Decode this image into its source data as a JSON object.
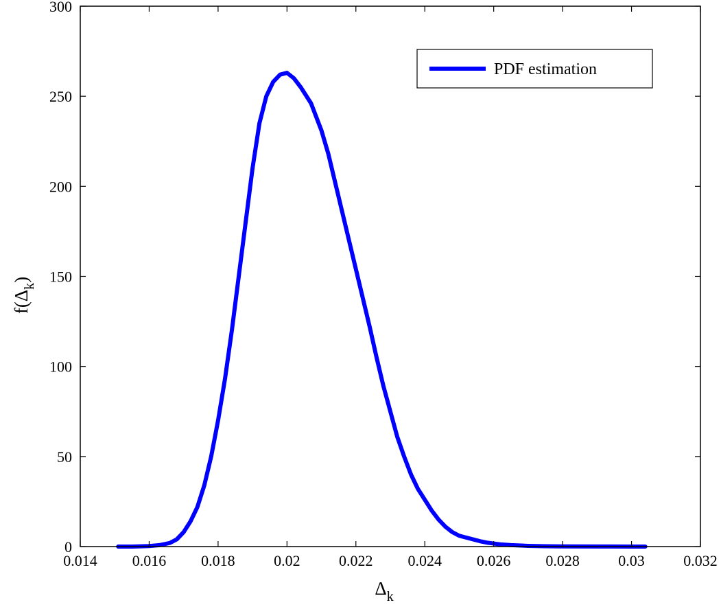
{
  "chart_data": {
    "type": "line",
    "title": "",
    "xlabel": {
      "main": "Δ",
      "sub": "k"
    },
    "ylabel": {
      "prefix": "f(Δ",
      "sub": "k",
      "suffix": ")"
    },
    "xlim": [
      0.014,
      0.032
    ],
    "ylim": [
      0,
      300
    ],
    "x_ticks": [
      0.014,
      0.016,
      0.018,
      0.02,
      0.022,
      0.024,
      0.026,
      0.028,
      0.03,
      0.032
    ],
    "x_tick_labels": [
      "0.014",
      "0.016",
      "0.018",
      "0.02",
      "0.022",
      "0.024",
      "0.026",
      "0.028",
      "0.03",
      "0.032"
    ],
    "y_ticks": [
      0,
      50,
      100,
      150,
      200,
      250,
      300
    ],
    "y_tick_labels": [
      "0",
      "50",
      "100",
      "150",
      "200",
      "250",
      "300"
    ],
    "grid": false,
    "legend_position": "top-right",
    "series": [
      {
        "name": "PDF estimation",
        "color": "#0000ff",
        "x": [
          0.0151,
          0.0155,
          0.016,
          0.0163,
          0.0166,
          0.0168,
          0.017,
          0.0172,
          0.0174,
          0.0176,
          0.0178,
          0.018,
          0.0182,
          0.0184,
          0.0186,
          0.0188,
          0.019,
          0.0192,
          0.0194,
          0.0196,
          0.0198,
          0.02,
          0.0202,
          0.0204,
          0.0206,
          0.0207,
          0.0208,
          0.021,
          0.0212,
          0.0214,
          0.0216,
          0.0218,
          0.022,
          0.0222,
          0.0224,
          0.0226,
          0.0228,
          0.023,
          0.0232,
          0.0234,
          0.0236,
          0.0238,
          0.024,
          0.0242,
          0.0244,
          0.0246,
          0.0248,
          0.025,
          0.0252,
          0.0254,
          0.0256,
          0.0258,
          0.026,
          0.0262,
          0.0265,
          0.027,
          0.0275,
          0.028,
          0.029,
          0.03,
          0.0304
        ],
        "y": [
          0,
          0,
          0.3,
          0.8,
          2,
          4,
          8,
          14,
          22,
          34,
          50,
          70,
          93,
          120,
          150,
          180,
          210,
          235,
          250,
          258,
          262,
          263,
          260,
          255,
          249,
          246,
          241,
          231,
          218,
          202,
          186,
          170,
          154,
          138,
          122,
          105,
          89,
          75,
          61,
          50,
          40,
          32,
          26,
          20,
          15,
          11,
          8,
          6,
          5,
          4,
          3,
          2.2,
          1.7,
          1.2,
          0.8,
          0.4,
          0.2,
          0.1,
          0.05,
          0,
          0
        ]
      }
    ]
  }
}
